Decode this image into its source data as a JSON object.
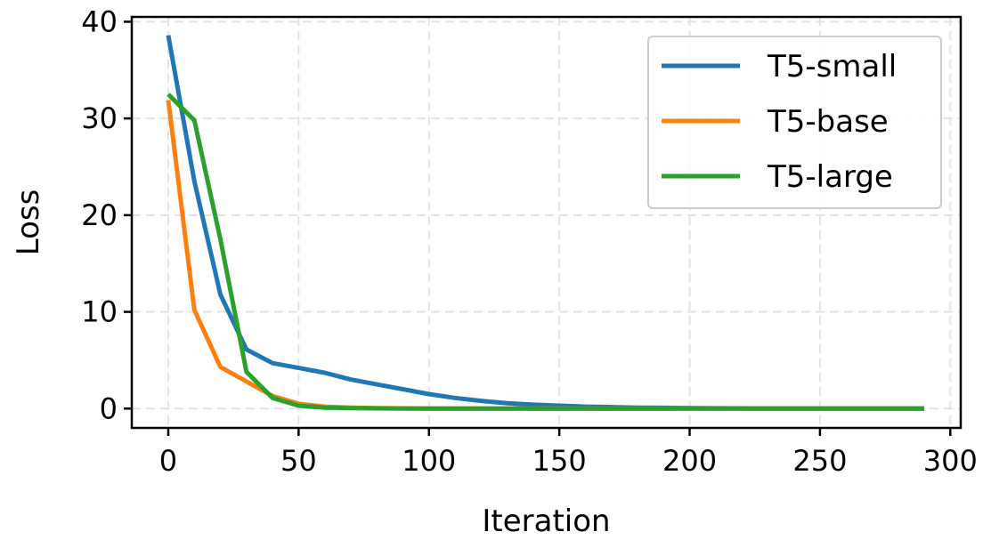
{
  "chart_data": {
    "type": "line",
    "title": "",
    "xlabel": "Iteration",
    "ylabel": "Loss",
    "xlim": [
      -14,
      304
    ],
    "ylim": [
      -2,
      40.5
    ],
    "xticks": [
      0,
      50,
      100,
      150,
      200,
      250,
      300
    ],
    "yticks": [
      0,
      10,
      20,
      30,
      40
    ],
    "grid": true,
    "legend_position": "top-right",
    "x": [
      0,
      10,
      20,
      30,
      40,
      50,
      60,
      70,
      80,
      90,
      100,
      110,
      120,
      130,
      140,
      150,
      160,
      170,
      180,
      190,
      200,
      210,
      220,
      230,
      240,
      250,
      260,
      270,
      280,
      290
    ],
    "series": [
      {
        "name": "T5-small",
        "color": "#1f77b4",
        "values": [
          38.6,
          23.5,
          11.8,
          6.1,
          4.7,
          4.2,
          3.7,
          3.0,
          2.5,
          2.0,
          1.5,
          1.1,
          0.8,
          0.55,
          0.4,
          0.3,
          0.2,
          0.15,
          0.1,
          0.08,
          0.05,
          0.03,
          0.02,
          0.01,
          0.01,
          0.0,
          0.0,
          0.0,
          0.0,
          0.0
        ]
      },
      {
        "name": "T5-base",
        "color": "#ff7f0e",
        "values": [
          31.9,
          10.2,
          4.3,
          2.8,
          1.3,
          0.5,
          0.2,
          0.1,
          0.05,
          0.02,
          0.01,
          0.0,
          0.0,
          0.0,
          0.0,
          0.0,
          0.0,
          0.0,
          0.0,
          0.0,
          0.0,
          0.0,
          0.0,
          0.0,
          0.0,
          0.0,
          0.0,
          0.0,
          0.0,
          0.0
        ]
      },
      {
        "name": "T5-large",
        "color": "#2ca02c",
        "values": [
          32.5,
          29.8,
          17.5,
          3.8,
          1.1,
          0.3,
          0.1,
          0.05,
          0.02,
          0.01,
          0.0,
          0.0,
          0.0,
          0.0,
          0.0,
          0.0,
          0.0,
          0.0,
          0.0,
          0.0,
          0.0,
          0.0,
          0.0,
          0.0,
          0.0,
          0.0,
          0.0,
          0.0,
          0.0,
          0.0
        ]
      }
    ]
  }
}
